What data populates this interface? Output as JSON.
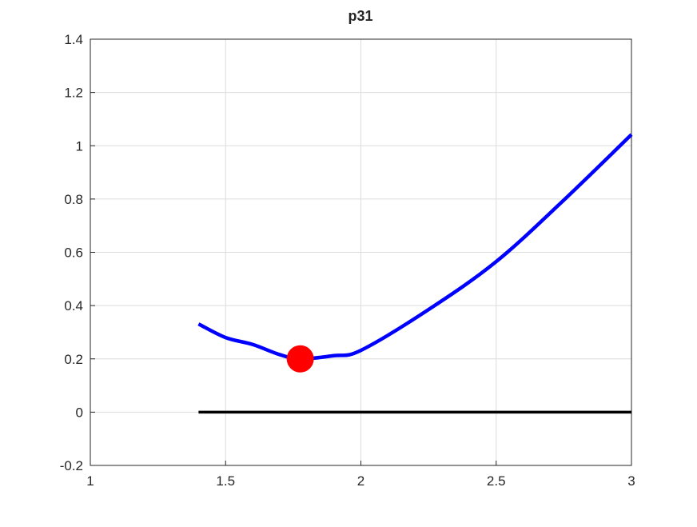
{
  "chart_data": {
    "type": "line",
    "title": "p31",
    "xlabel": "",
    "ylabel": "",
    "xlim": [
      1,
      3
    ],
    "ylim": [
      -0.2,
      1.4
    ],
    "xticks": [
      "1",
      "1.5",
      "2",
      "2.5",
      "3"
    ],
    "yticks": [
      "-0.2",
      "0",
      "0.2",
      "0.4",
      "0.6",
      "0.8",
      "1",
      "1.2",
      "1.4"
    ],
    "grid": true,
    "series": [
      {
        "color": "#0000ff",
        "x": [
          1.4,
          1.5,
          1.6,
          1.7,
          1.776,
          1.9,
          2.0,
          2.25,
          2.5,
          2.75,
          3.0
        ],
        "y": [
          0.331,
          0.28,
          0.254,
          0.216,
          0.2,
          0.212,
          0.232,
          0.385,
          0.565,
          0.796,
          1.042
        ]
      },
      {
        "color": "#000000",
        "x": [
          1.4,
          3.0
        ],
        "y": [
          0,
          0
        ]
      }
    ],
    "markers": [
      {
        "x": 1.776,
        "y": 0.2,
        "color": "#ff0000"
      }
    ]
  }
}
